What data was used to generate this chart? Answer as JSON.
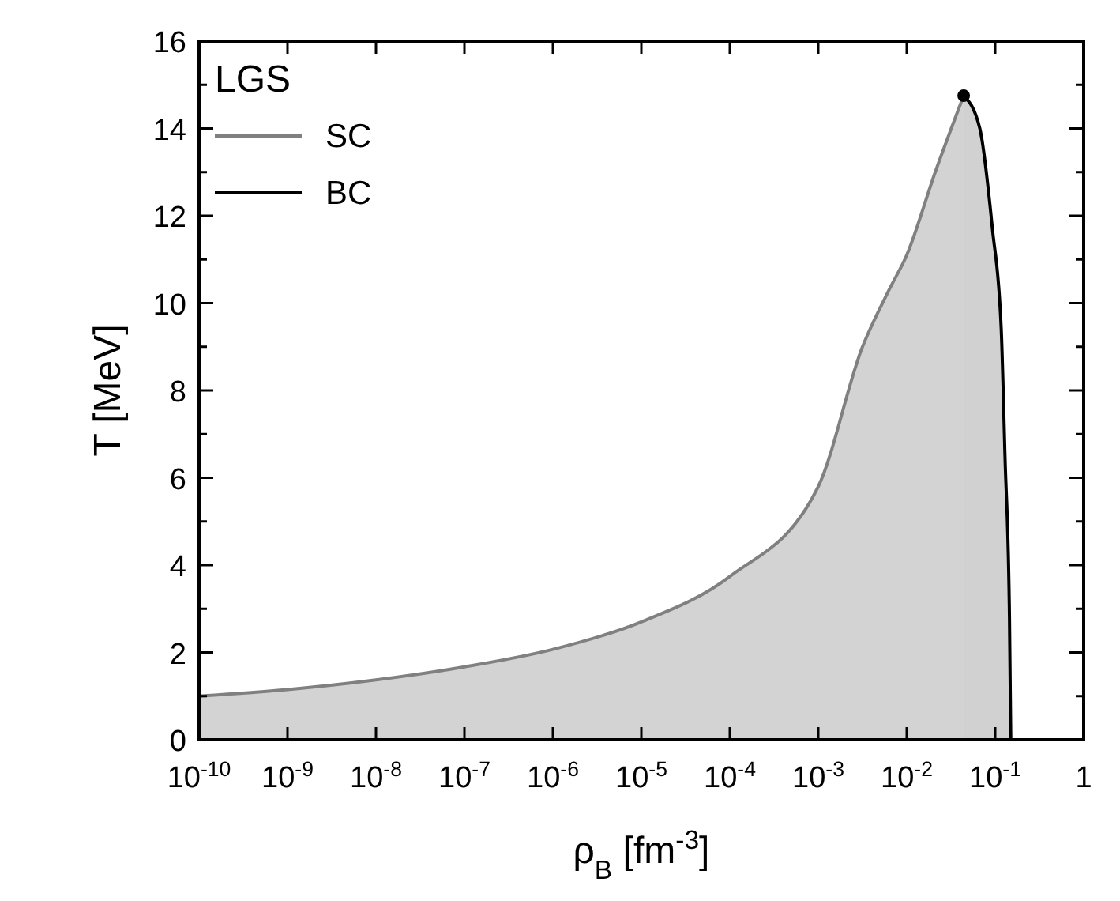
{
  "chart_data": {
    "type": "area",
    "xlabel": "ρ$_{B}$ [fm$^{-3}$]",
    "ylabel": "T [MeV]",
    "legend_title": "LGS",
    "legend": "top left",
    "log": "x",
    "grid": false,
    "xlim": [
      1e-10,
      1
    ],
    "ylim": [
      0,
      16
    ],
    "xticks": [
      {
        "value": 1e-10,
        "label": "10$^{-10}$"
      },
      {
        "value": 1e-09,
        "label": "10$^{-9}$"
      },
      {
        "value": 1e-08,
        "label": "10$^{-8}$"
      },
      {
        "value": 1e-07,
        "label": "10$^{-7}$"
      },
      {
        "value": 1e-06,
        "label": "10$^{-6}$"
      },
      {
        "value": 1e-05,
        "label": "10$^{-5}$"
      },
      {
        "value": 0.0001,
        "label": "10$^{-4}$"
      },
      {
        "value": 0.001,
        "label": "10$^{-3}$"
      },
      {
        "value": 0.01,
        "label": "10$^{-2}$"
      },
      {
        "value": 0.1,
        "label": "10$^{-1}$"
      },
      1
    ],
    "yticks": [
      0,
      {
        "value": 1,
        "label": null
      },
      2,
      {
        "value": 3,
        "label": null
      },
      4,
      {
        "value": 5,
        "label": null
      },
      6,
      {
        "value": 7,
        "label": null
      },
      8,
      {
        "value": 9,
        "label": null
      },
      10,
      {
        "value": 11,
        "label": null
      },
      12,
      {
        "value": 13,
        "label": null
      },
      14,
      {
        "value": 15,
        "label": null
      },
      16
    ],
    "series": [
      {
        "name": "SC",
        "color": "#808080",
        "x": [
          1e-10,
          1e-09,
          1e-08,
          1e-07,
          1e-06,
          1e-05,
          0.0001,
          0.001,
          0.00316,
          0.0063,
          0.01,
          0.021,
          0.044
        ],
        "values": [
          1.0,
          1.15,
          1.37,
          1.67,
          2.07,
          2.7,
          3.74,
          5.8,
          9.0,
          10.3,
          11.1,
          13.0,
          14.75
        ]
      },
      {
        "name": "BC",
        "color": "#000000",
        "x": [
          0.044,
          0.067,
          0.093,
          0.117,
          0.129,
          0.145,
          0.15
        ],
        "values": [
          14.75,
          14.0,
          11.7,
          9.4,
          6.5,
          2.8,
          0
        ]
      },
      {
        "type": "scatter",
        "color": "#000000",
        "marker": "circle",
        "x": [
          0.044
        ],
        "values": [
          14.75
        ]
      }
    ]
  }
}
